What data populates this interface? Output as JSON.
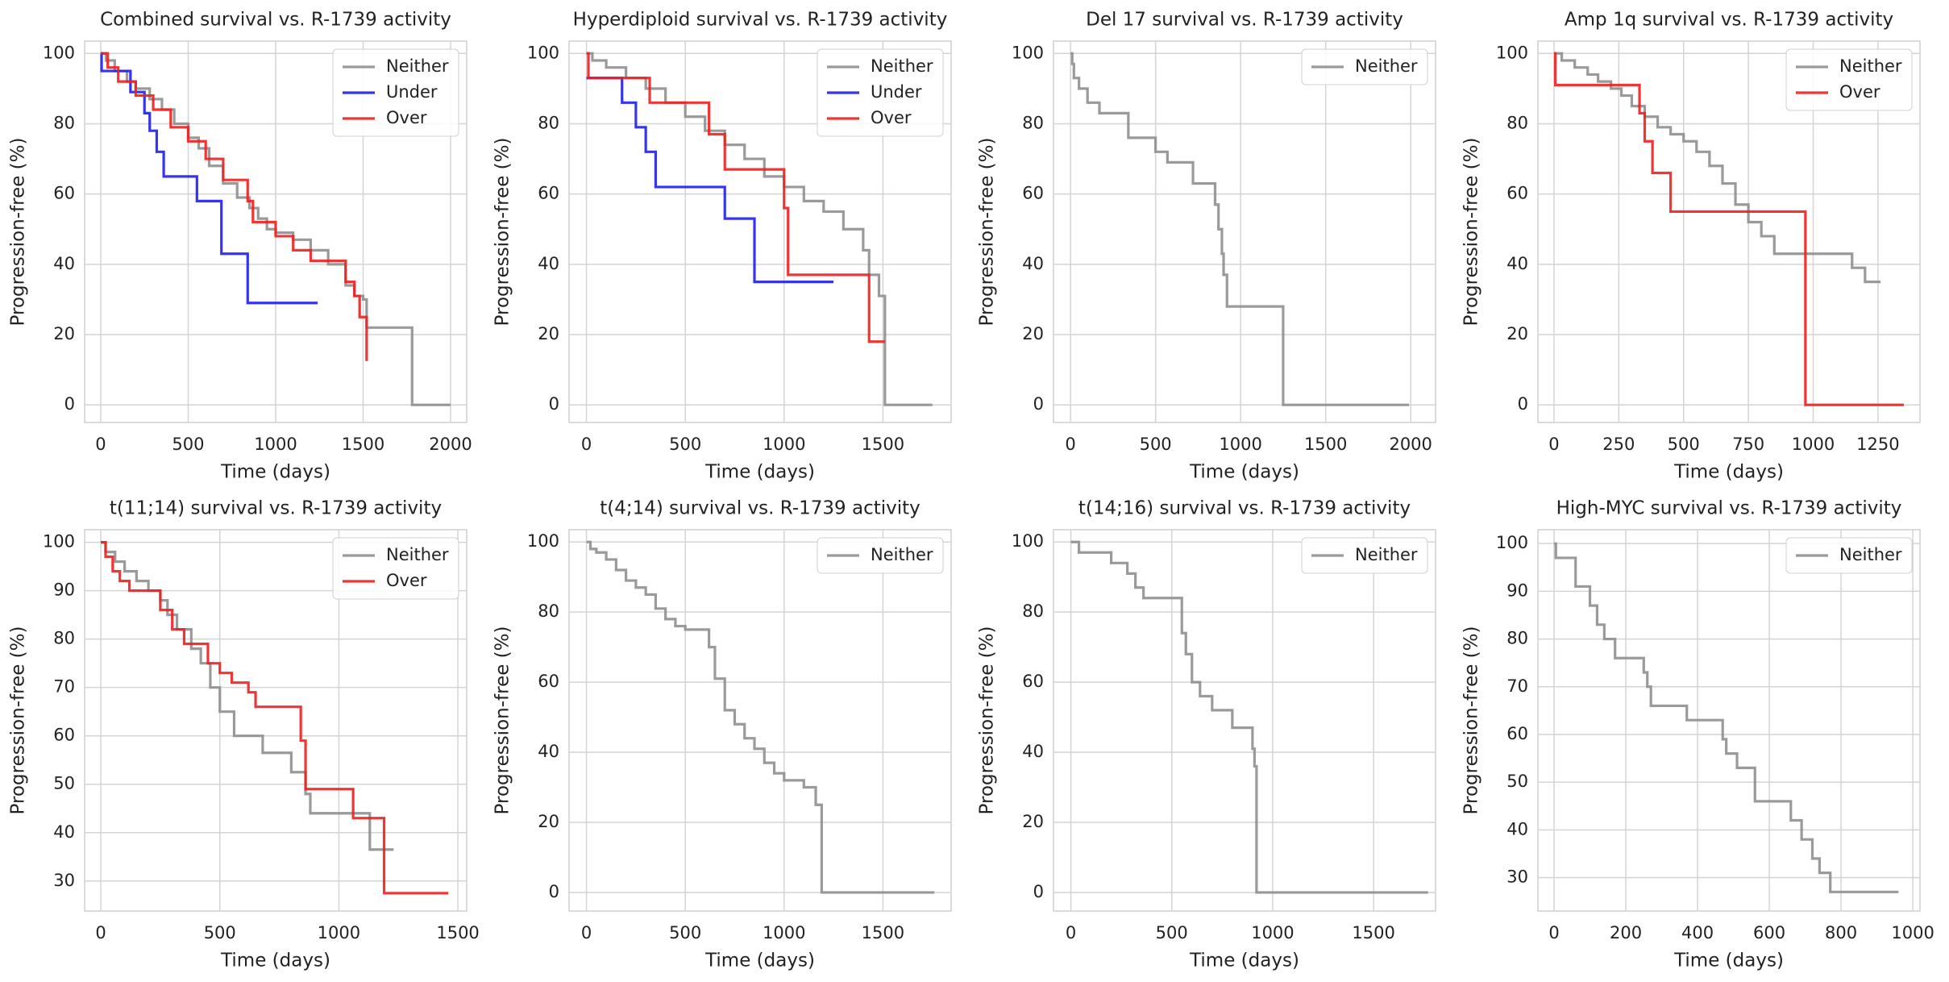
{
  "chart_data": [
    {
      "type": "line",
      "step": true,
      "title": "Combined survival vs. R-1739 activity",
      "x_label": "Time (days)",
      "y_label": "Progression-free (%)",
      "xlim": [
        -92,
        2092
      ],
      "ylim": [
        -5,
        103.5
      ],
      "xticks": [
        0,
        500,
        1000,
        1500,
        2000
      ],
      "yticks": [
        0,
        20,
        40,
        60,
        80,
        100
      ],
      "grid": true,
      "legend": "upper right",
      "series": [
        {
          "name": "Neither",
          "color": "#8f8f8f",
          "x": [
            0,
            30,
            80,
            150,
            200,
            280,
            350,
            420,
            500,
            560,
            620,
            700,
            780,
            850,
            900,
            950,
            1000,
            1100,
            1200,
            1300,
            1400,
            1450,
            1500,
            1520,
            1760,
            1780,
            2000
          ],
          "values": [
            100,
            98,
            95,
            92,
            90,
            87,
            84,
            80,
            76,
            73,
            68,
            63,
            59,
            56,
            53,
            50,
            49,
            47,
            44,
            40,
            34,
            31,
            30,
            22,
            22,
            0,
            0
          ]
        },
        {
          "name": "Under",
          "color": "#1f1fee",
          "x": [
            0,
            5,
            170,
            250,
            280,
            320,
            360,
            550,
            690,
            840,
            1240
          ],
          "values": [
            100,
            95,
            89,
            83,
            78,
            72,
            65,
            58,
            43,
            29,
            29
          ]
        },
        {
          "name": "Over",
          "color": "#ee1f1f",
          "x": [
            0,
            40,
            100,
            200,
            300,
            400,
            500,
            600,
            700,
            840,
            870,
            1000,
            1100,
            1200,
            1400,
            1450,
            1480,
            1520
          ],
          "values": [
            100,
            96,
            92,
            88,
            84,
            79,
            75,
            70,
            64,
            58,
            52,
            48,
            44,
            41,
            35,
            31,
            25,
            12.5
          ]
        }
      ]
    },
    {
      "type": "line",
      "step": true,
      "title": "Hyperdiploid survival vs. R-1739 activity",
      "x_label": "Time (days)",
      "y_label": "Progression-free (%)",
      "xlim": [
        -88,
        1845
      ],
      "ylim": [
        -5,
        103.5
      ],
      "xticks": [
        0,
        500,
        1000,
        1500
      ],
      "yticks": [
        0,
        20,
        40,
        60,
        80,
        100
      ],
      "grid": true,
      "legend": "upper right",
      "series": [
        {
          "name": "Neither",
          "color": "#8f8f8f",
          "x": [
            0,
            30,
            100,
            200,
            300,
            400,
            500,
            600,
            700,
            800,
            900,
            1000,
            1100,
            1200,
            1300,
            1400,
            1430,
            1480,
            1510,
            1750
          ],
          "values": [
            100,
            98,
            96,
            93,
            90,
            86,
            82,
            78,
            74,
            70,
            65,
            62,
            58,
            55,
            50,
            44,
            37,
            31,
            0,
            0
          ]
        },
        {
          "name": "Under",
          "color": "#1f1fee",
          "x": [
            0,
            180,
            250,
            300,
            350,
            700,
            850,
            1250
          ],
          "values": [
            93,
            86,
            79,
            72,
            62,
            53,
            35,
            35
          ]
        },
        {
          "name": "Over",
          "color": "#ee1f1f",
          "x": [
            0,
            10,
            320,
            620,
            700,
            1000,
            1020,
            1430,
            1510
          ],
          "values": [
            100,
            93,
            86,
            77,
            67,
            56,
            37,
            18,
            18
          ]
        }
      ]
    },
    {
      "type": "line",
      "step": true,
      "title": "Del 17 survival vs. R-1739 activity",
      "x_label": "Time (days)",
      "y_label": "Progression-free (%)",
      "xlim": [
        -100,
        2146
      ],
      "ylim": [
        -5,
        103.5
      ],
      "xticks": [
        0,
        500,
        1000,
        1500,
        2000
      ],
      "yticks": [
        0,
        20,
        40,
        60,
        80,
        100
      ],
      "grid": true,
      "legend": "upper right",
      "series": [
        {
          "name": "Neither",
          "color": "#8f8f8f",
          "x": [
            0,
            10,
            20,
            50,
            100,
            170,
            340,
            500,
            570,
            720,
            850,
            870,
            890,
            900,
            920,
            1250,
            1990
          ],
          "values": [
            100,
            97,
            93,
            90,
            86,
            83,
            76,
            72,
            69,
            63,
            57,
            50,
            43,
            37,
            28,
            0,
            0
          ]
        }
      ]
    },
    {
      "type": "line",
      "step": true,
      "title": "Amp 1q survival vs. R-1739 activity",
      "x_label": "Time (days)",
      "y_label": "Progression-free (%)",
      "xlim": [
        -62,
        1412
      ],
      "ylim": [
        -5,
        103.5
      ],
      "xticks": [
        0,
        250,
        500,
        750,
        1000,
        1250
      ],
      "yticks": [
        0,
        20,
        40,
        60,
        80,
        100
      ],
      "grid": true,
      "legend": "upper right",
      "series": [
        {
          "name": "Neither",
          "color": "#8f8f8f",
          "x": [
            0,
            30,
            80,
            130,
            170,
            220,
            260,
            300,
            350,
            400,
            450,
            500,
            550,
            600,
            650,
            700,
            750,
            800,
            850,
            900,
            1150,
            1200,
            1260
          ],
          "values": [
            100,
            98,
            96,
            94,
            92,
            90,
            88,
            85,
            82,
            79,
            77,
            75,
            72,
            68,
            63,
            57,
            52,
            48,
            43,
            43,
            39,
            35,
            35
          ]
        },
        {
          "name": "Over",
          "color": "#ee1f1f",
          "x": [
            0,
            5,
            330,
            350,
            380,
            450,
            970,
            1350
          ],
          "values": [
            100,
            91,
            83,
            75,
            66,
            55,
            0,
            0
          ]
        }
      ]
    },
    {
      "type": "line",
      "step": true,
      "title": "t(11;14) survival vs. R-1739 activity",
      "x_label": "Time (days)",
      "y_label": "Progression-free (%)",
      "xlim": [
        -68,
        1537
      ],
      "ylim": [
        23.8,
        102.6
      ],
      "xticks": [
        0,
        500,
        1000,
        1500
      ],
      "yticks": [
        30,
        40,
        50,
        60,
        70,
        80,
        90,
        100
      ],
      "grid": true,
      "legend": "upper right",
      "series": [
        {
          "name": "Neither",
          "color": "#8f8f8f",
          "x": [
            0,
            20,
            60,
            100,
            150,
            200,
            250,
            280,
            320,
            380,
            420,
            460,
            500,
            560,
            680,
            800,
            860,
            880,
            1080,
            1130,
            1230
          ],
          "values": [
            100,
            98,
            96,
            94,
            92,
            90,
            88,
            85,
            82,
            78,
            75,
            70,
            65,
            60,
            56.5,
            52.5,
            48,
            44,
            44,
            36.5,
            36.5
          ]
        },
        {
          "name": "Over",
          "color": "#ee1f1f",
          "x": [
            0,
            20,
            50,
            80,
            120,
            250,
            300,
            350,
            450,
            500,
            550,
            620,
            650,
            840,
            860,
            1060,
            1190,
            1460
          ],
          "values": [
            100,
            97,
            94,
            92,
            90,
            86,
            82,
            79,
            75,
            73,
            71,
            69,
            66,
            59,
            49,
            43,
            27.5,
            27.5
          ]
        }
      ]
    },
    {
      "type": "line",
      "step": true,
      "title": "t(4;14) survival vs. R-1739 activity",
      "x_label": "Time (days)",
      "y_label": "Progression-free (%)",
      "xlim": [
        -88,
        1845
      ],
      "ylim": [
        -5.3,
        103.5
      ],
      "xticks": [
        0,
        500,
        1000,
        1500
      ],
      "yticks": [
        0,
        20,
        40,
        60,
        80,
        100
      ],
      "grid": true,
      "legend": "upper right",
      "series": [
        {
          "name": "Neither",
          "color": "#8f8f8f",
          "x": [
            0,
            20,
            50,
            100,
            150,
            200,
            250,
            300,
            350,
            400,
            450,
            500,
            600,
            620,
            650,
            700,
            750,
            800,
            850,
            900,
            950,
            1000,
            1100,
            1160,
            1190,
            1760
          ],
          "values": [
            100,
            98,
            97,
            95,
            92,
            89,
            87,
            85,
            81,
            78,
            76,
            75,
            75,
            70,
            61,
            52,
            48,
            44,
            41,
            37,
            34,
            32,
            30,
            25,
            0,
            0
          ]
        }
      ]
    },
    {
      "type": "line",
      "step": true,
      "title": "t(14;16) survival vs. R-1739 activity",
      "x_label": "Time (days)",
      "y_label": "Progression-free (%)",
      "xlim": [
        -86,
        1807
      ],
      "ylim": [
        -5.3,
        103.5
      ],
      "xticks": [
        0,
        500,
        1000,
        1500
      ],
      "yticks": [
        0,
        20,
        40,
        60,
        80,
        100
      ],
      "grid": true,
      "legend": "upper right",
      "series": [
        {
          "name": "Neither",
          "color": "#8f8f8f",
          "x": [
            0,
            40,
            200,
            280,
            320,
            360,
            550,
            570,
            600,
            640,
            700,
            800,
            900,
            910,
            920,
            1770
          ],
          "values": [
            100,
            97,
            94,
            91,
            87,
            84,
            74,
            68,
            60,
            56,
            52,
            47,
            41,
            36,
            0,
            0
          ]
        }
      ]
    },
    {
      "type": "line",
      "step": true,
      "title": "High-MYC survival vs. R-1739 activity",
      "x_label": "Time (days)",
      "y_label": "Progression-free (%)",
      "xlim": [
        -45,
        1020
      ],
      "ylim": [
        23,
        102.9
      ],
      "xticks": [
        0,
        200,
        400,
        600,
        800,
        1000
      ],
      "yticks": [
        30,
        40,
        50,
        60,
        70,
        80,
        90,
        100
      ],
      "grid": true,
      "legend": "upper right",
      "series": [
        {
          "name": "Neither",
          "color": "#8f8f8f",
          "x": [
            0,
            5,
            60,
            100,
            120,
            140,
            170,
            250,
            260,
            270,
            370,
            470,
            480,
            510,
            560,
            660,
            690,
            720,
            740,
            770,
            960
          ],
          "values": [
            100,
            97,
            91,
            87,
            83,
            80,
            76,
            73,
            70,
            66,
            63,
            59,
            56,
            53,
            46,
            42,
            38,
            34,
            31,
            27,
            27
          ]
        }
      ]
    }
  ]
}
